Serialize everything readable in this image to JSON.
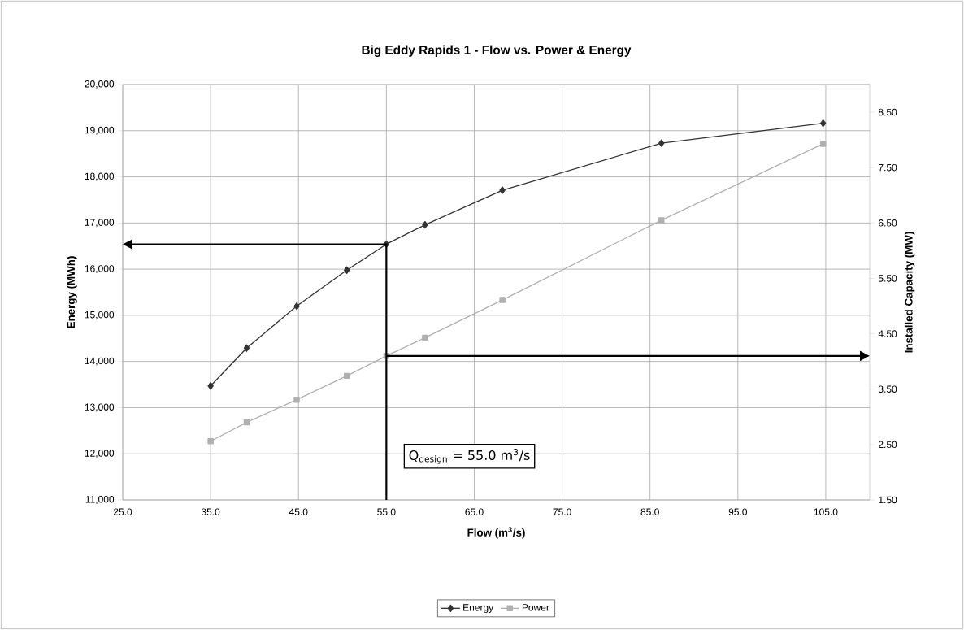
{
  "chart_data": {
    "type": "line",
    "title": "Big Eddy Rapids 1 - Flow vs. Power & Energy",
    "xlabel": "Flow (m$^{3}$/s)",
    "ylabel": "Energy (MWh)",
    "y2label": "Installed Capacity (MW)",
    "xlim": [
      25,
      110
    ],
    "xticks": [
      {
        "value": 25,
        "label": "25.0"
      },
      {
        "value": 35,
        "label": "35.0"
      },
      {
        "value": 45,
        "label": "45.0"
      },
      {
        "value": 55,
        "label": "55.0"
      },
      {
        "value": 65,
        "label": "65.0"
      },
      {
        "value": 75,
        "label": "75.0"
      },
      {
        "value": 85,
        "label": "85.0"
      },
      {
        "value": 95,
        "label": "95.0"
      },
      {
        "value": 105,
        "label": "105.0"
      }
    ],
    "ylim": [
      11000,
      20000
    ],
    "yticks": [
      {
        "value": 11000,
        "label": "11,000"
      },
      {
        "value": 12000,
        "label": "12,000"
      },
      {
        "value": 13000,
        "label": "13,000"
      },
      {
        "value": 14000,
        "label": "14,000"
      },
      {
        "value": 15000,
        "label": "15,000"
      },
      {
        "value": 16000,
        "label": "16,000"
      },
      {
        "value": 17000,
        "label": "17,000"
      },
      {
        "value": 18000,
        "label": "18,000"
      },
      {
        "value": 19000,
        "label": "19,000"
      },
      {
        "value": 20000,
        "label": "20,000"
      }
    ],
    "y2lim": [
      1.5,
      9.0
    ],
    "y2ticks": [
      {
        "value": 1.5,
        "label": "1.50"
      },
      {
        "value": 2.5,
        "label": "2.50"
      },
      {
        "value": 3.5,
        "label": "3.50"
      },
      {
        "value": 4.5,
        "label": "4.50"
      },
      {
        "value": 5.5,
        "label": "5.50"
      },
      {
        "value": 6.5,
        "label": "6.50"
      },
      {
        "value": 7.5,
        "label": "7.50"
      },
      {
        "value": 8.5,
        "label": "8.50"
      }
    ],
    "series": [
      {
        "name": "Energy",
        "color": "#333333",
        "marker": "diamond",
        "x": [
          35,
          39.1,
          44.8,
          50.5,
          55,
          59.4,
          68.2,
          86.3,
          104.7
        ],
        "values": [
          13470,
          14290,
          15200,
          15980,
          16540,
          16960,
          17710,
          18730,
          19160
        ]
      },
      {
        "name": "Power",
        "color": "#b0b0b0",
        "marker": "square",
        "axis": "y2",
        "x": [
          35,
          39.1,
          44.8,
          50.5,
          55,
          59.4,
          68.2,
          86.3,
          104.7
        ],
        "values": [
          2.56,
          2.9,
          3.31,
          3.74,
          4.1,
          4.43,
          5.11,
          6.55,
          7.93
        ]
      }
    ],
    "ref_lines": [
      {
        "axis": "x",
        "value": 55,
        "label": "Q$_{design}$ = 55.0 m$^{3}$/s",
        "color": "#000000"
      }
    ],
    "grid": true,
    "legend": "bottom"
  }
}
